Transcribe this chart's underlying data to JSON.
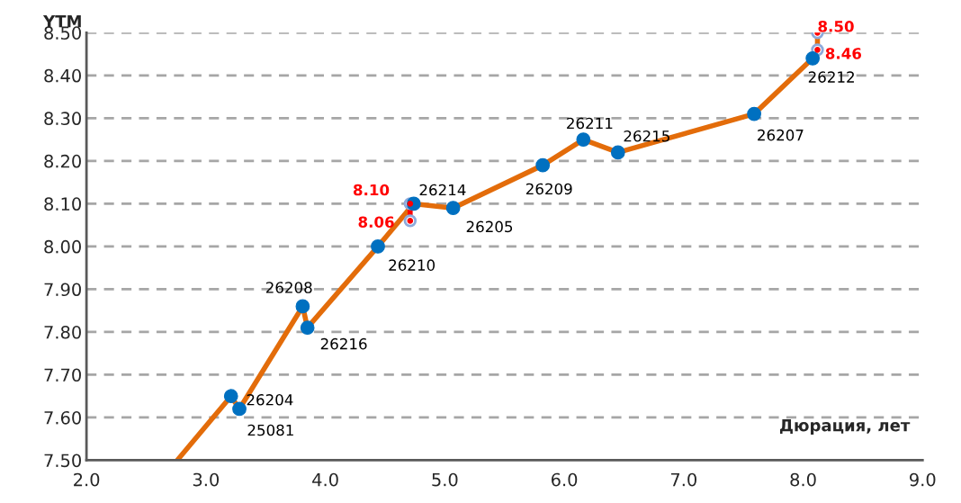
{
  "chart_data": {
    "type": "line",
    "xlabel": "Дюрация, лет",
    "ylabel": "YTM",
    "xlim": [
      2.0,
      9.0
    ],
    "xticks": [
      {
        "value": 2,
        "label": "2.0"
      },
      {
        "value": 3,
        "label": "3.0"
      },
      {
        "value": 4,
        "label": "4.0"
      },
      {
        "value": 5,
        "label": "5.0"
      },
      {
        "value": 6,
        "label": "6.0"
      },
      {
        "value": 7,
        "label": "7.0"
      },
      {
        "value": 8,
        "label": "8.0"
      },
      {
        "value": 9,
        "label": "9.0"
      }
    ],
    "ylim": [
      7.5,
      8.5
    ],
    "yticks": [
      {
        "value": 7.5,
        "label": "7.50"
      },
      {
        "value": 7.6,
        "label": "7.60"
      },
      {
        "value": 7.7,
        "label": "7.70"
      },
      {
        "value": 7.8,
        "label": "7.80"
      },
      {
        "value": 7.9,
        "label": "7.90"
      },
      {
        "value": 8.0,
        "label": "8.00"
      },
      {
        "value": 8.1,
        "label": "8.10"
      },
      {
        "value": 8.2,
        "label": "8.20"
      },
      {
        "value": 8.3,
        "label": "8.30"
      },
      {
        "value": 8.4,
        "label": "8.40"
      },
      {
        "value": 8.5,
        "label": "8.50"
      }
    ],
    "grid": "y",
    "legend": false,
    "series": [
      {
        "color": "#e36c0a",
        "x": [
          2.76,
          3.21,
          3.28,
          3.81,
          3.85,
          4.44,
          4.74,
          5.07,
          5.82,
          6.16,
          6.45,
          7.59,
          8.08,
          8.12,
          8.12
        ],
        "values": [
          7.5,
          7.65,
          7.62,
          7.86,
          7.81,
          8.0,
          8.1,
          8.09,
          8.19,
          8.25,
          8.22,
          8.31,
          8.44,
          8.46,
          8.5
        ]
      },
      {
        "color": "#ff0000",
        "marker": "circle",
        "x": [
          4.71,
          4.71
        ],
        "values": [
          8.06,
          8.1
        ]
      },
      {
        "type": "scatter",
        "color": "#0070c0",
        "marker": "circle",
        "x": [
          3.21,
          3.28,
          3.81,
          3.85,
          4.44,
          4.74,
          5.07,
          5.82,
          6.16,
          6.45,
          7.59,
          8.08
        ],
        "values": [
          7.65,
          7.62,
          7.86,
          7.81,
          8.0,
          8.1,
          8.09,
          8.19,
          8.25,
          8.22,
          8.31,
          8.44
        ]
      },
      {
        "type": "scatter",
        "color": "#ff0000",
        "marker": "circle",
        "x": [
          4.71,
          4.71,
          8.12,
          8.12
        ],
        "values": [
          8.1,
          8.06,
          8.5,
          8.46
        ],
        "value_labels": [
          "8.10",
          "8.06",
          "8.50",
          "8.46"
        ]
      }
    ],
    "annotations": [
      {
        "text": "26204",
        "x": 3.21,
        "y": 7.65
      },
      {
        "text": "25081",
        "x": 3.28,
        "y": 7.62
      },
      {
        "text": "26208",
        "x": 3.81,
        "y": 7.86
      },
      {
        "text": "26216",
        "x": 3.85,
        "y": 7.81
      },
      {
        "text": "26210",
        "x": 4.44,
        "y": 8.0
      },
      {
        "text": "26214",
        "x": 4.74,
        "y": 8.1
      },
      {
        "text": "26205",
        "x": 5.07,
        "y": 8.09
      },
      {
        "text": "26209",
        "x": 5.82,
        "y": 8.19
      },
      {
        "text": "26211",
        "x": 6.16,
        "y": 8.25
      },
      {
        "text": "26215",
        "x": 6.45,
        "y": 8.22
      },
      {
        "text": "26207",
        "x": 7.59,
        "y": 8.31
      },
      {
        "text": "26212",
        "x": 8.08,
        "y": 8.44
      }
    ]
  }
}
